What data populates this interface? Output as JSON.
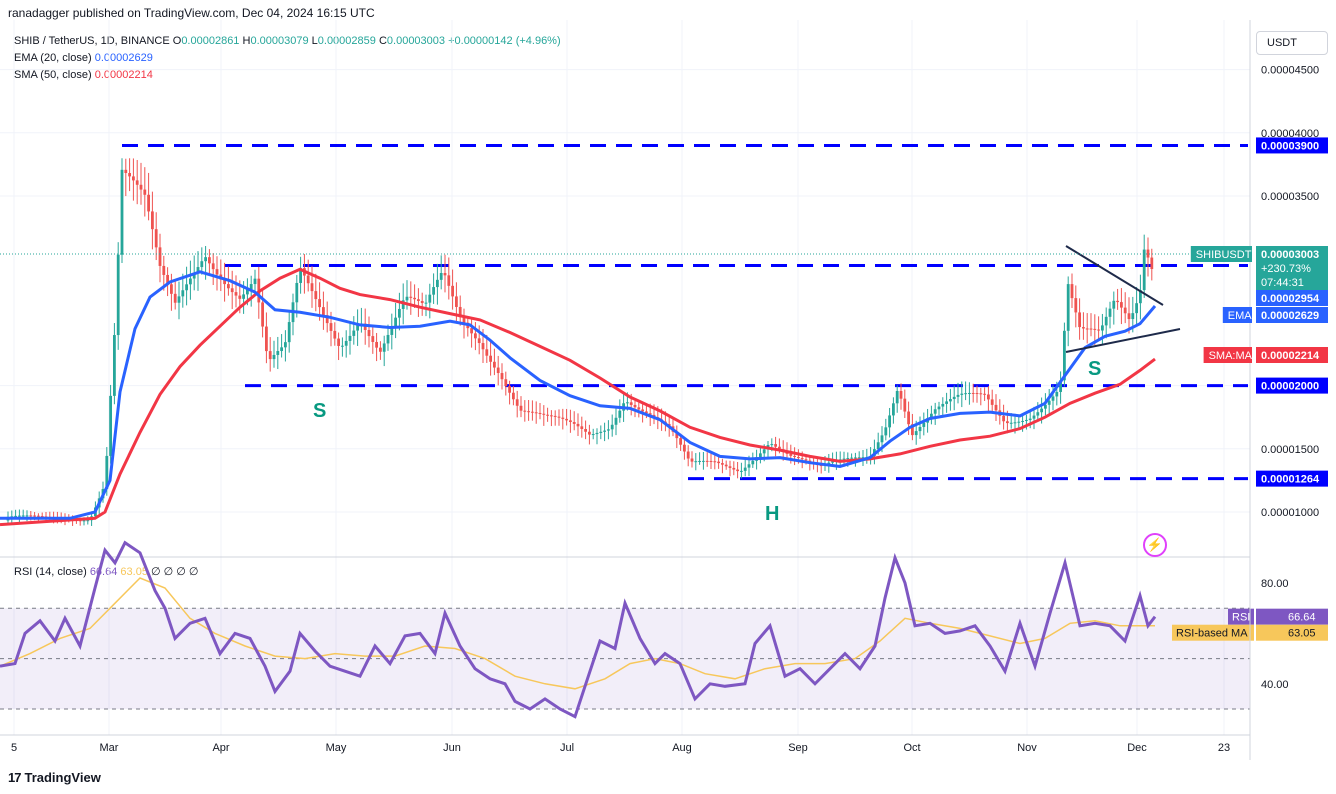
{
  "header": {
    "text": "ranadagger published on TradingView.com, Dec 04, 2024 16:15 UTC"
  },
  "legend": {
    "symbol": "SHIB / TetherUS, 1D, BINANCE",
    "o_label": "O",
    "o": "0.00002861",
    "h_label": "H",
    "h": "0.00003079",
    "l_label": "L",
    "l": "0.00002859",
    "c_label": "C",
    "c": "0.00003003",
    "change": "+0.00000142 (+4.96%)",
    "ema_label": "EMA (20, close)",
    "ema_value": "0.00002629",
    "sma_label": "SMA (50, close)",
    "sma_value": "0.00002214"
  },
  "currency": "USDT",
  "rsi_legend": {
    "label": "RSI (14, close)",
    "rsi": "66.64",
    "ma": "63.05",
    "zeros": "∅ ∅ ∅ ∅"
  },
  "footer": {
    "logo": "17",
    "brand": "TradingView"
  },
  "colors": {
    "up": "#26a69a",
    "down": "#ef5350",
    "ema": "#2962ff",
    "sma": "#f23645",
    "level": "#0000ff",
    "rsi": "#7e57c2",
    "rsi_ma": "#f7c75b"
  },
  "chart_data": [
    {
      "type": "candlestick",
      "name": "price",
      "y_ticks": [
        "0.00001000",
        "0.00001500",
        "0.00002000",
        "0.00003500",
        "0.00004000",
        "0.00004500"
      ],
      "ylim": [
        8.5e-06,
        4.65e-05
      ],
      "x_ticks": [
        "5",
        "Mar",
        "Apr",
        "May",
        "Jun",
        "Jul",
        "Aug",
        "Sep",
        "Oct",
        "Nov",
        "Dec",
        "23"
      ],
      "levels": [
        {
          "value": 3.9e-05,
          "label": "0.00003900"
        },
        {
          "value": 2.95e-05,
          "label": ""
        },
        {
          "value": 2e-05,
          "label": "0.00002000"
        },
        {
          "value": 1.264e-05,
          "label": "0.00001264"
        }
      ],
      "price_tags": [
        {
          "name": "SHIBUSDT",
          "value": "0.00003003",
          "extra1": "+230.73%",
          "extra2": "07:44:31"
        },
        {
          "name": "",
          "value": "0.00002954"
        },
        {
          "name": "EMA",
          "value": "0.00002629"
        },
        {
          "name": "SMA:MA",
          "value": "0.00002214"
        }
      ],
      "annotations": [
        "S",
        "H",
        "S"
      ],
      "series": [
        {
          "name": "EMA",
          "points": [
            [
              0,
              9.5e-06
            ],
            [
              70,
              9.5e-06
            ],
            [
              95,
              1e-05
            ],
            [
              110,
              1.25e-05
            ],
            [
              120,
              1.95e-05
            ],
            [
              135,
              2.45e-05
            ],
            [
              150,
              2.7e-05
            ],
            [
              170,
              2.82e-05
            ],
            [
              200,
              2.9e-05
            ],
            [
              230,
              2.83e-05
            ],
            [
              255,
              2.74e-05
            ],
            [
              275,
              2.6e-05
            ],
            [
              300,
              2.58e-05
            ],
            [
              330,
              2.54e-05
            ],
            [
              360,
              2.48e-05
            ],
            [
              390,
              2.46e-05
            ],
            [
              420,
              2.47e-05
            ],
            [
              450,
              2.51e-05
            ],
            [
              470,
              2.48e-05
            ],
            [
              490,
              2.36e-05
            ],
            [
              510,
              2.22e-05
            ],
            [
              540,
              2.04e-05
            ],
            [
              570,
              1.92e-05
            ],
            [
              600,
              1.84e-05
            ],
            [
              630,
              1.82e-05
            ],
            [
              660,
              1.73e-05
            ],
            [
              690,
              1.55e-05
            ],
            [
              720,
              1.44e-05
            ],
            [
              750,
              1.42e-05
            ],
            [
              780,
              1.43e-05
            ],
            [
              810,
              1.39e-05
            ],
            [
              840,
              1.36e-05
            ],
            [
              870,
              1.43e-05
            ],
            [
              890,
              1.56e-05
            ],
            [
              910,
              1.67e-05
            ],
            [
              930,
              1.74e-05
            ],
            [
              960,
              1.78e-05
            ],
            [
              990,
              1.79e-05
            ],
            [
              1020,
              1.76e-05
            ],
            [
              1045,
              1.86e-05
            ],
            [
              1065,
              2.08e-05
            ],
            [
              1085,
              2.3e-05
            ],
            [
              1105,
              2.39e-05
            ],
            [
              1125,
              2.43e-05
            ],
            [
              1140,
              2.49e-05
            ],
            [
              1155,
              2.63e-05
            ]
          ]
        },
        {
          "name": "SMA",
          "points": [
            [
              0,
              9e-06
            ],
            [
              95,
              9.5e-06
            ],
            [
              105,
              1e-05
            ],
            [
              120,
              1.3e-05
            ],
            [
              140,
              1.63e-05
            ],
            [
              160,
              1.93e-05
            ],
            [
              180,
              2.15e-05
            ],
            [
              200,
              2.32e-05
            ],
            [
              220,
              2.47e-05
            ],
            [
              240,
              2.62e-05
            ],
            [
              260,
              2.75e-05
            ],
            [
              280,
              2.85e-05
            ],
            [
              300,
              2.92e-05
            ],
            [
              320,
              2.85e-05
            ],
            [
              340,
              2.77e-05
            ],
            [
              360,
              2.72e-05
            ],
            [
              390,
              2.68e-05
            ],
            [
              420,
              2.62e-05
            ],
            [
              450,
              2.57e-05
            ],
            [
              480,
              2.52e-05
            ],
            [
              510,
              2.42e-05
            ],
            [
              540,
              2.31e-05
            ],
            [
              570,
              2.2e-05
            ],
            [
              600,
              2.06e-05
            ],
            [
              630,
              1.91e-05
            ],
            [
              660,
              1.8e-05
            ],
            [
              690,
              1.67e-05
            ],
            [
              720,
              1.59e-05
            ],
            [
              750,
              1.53e-05
            ],
            [
              780,
              1.49e-05
            ],
            [
              810,
              1.44e-05
            ],
            [
              840,
              1.4e-05
            ],
            [
              870,
              1.42e-05
            ],
            [
              900,
              1.46e-05
            ],
            [
              930,
              1.52e-05
            ],
            [
              960,
              1.57e-05
            ],
            [
              990,
              1.6e-05
            ],
            [
              1020,
              1.66e-05
            ],
            [
              1045,
              1.75e-05
            ],
            [
              1070,
              1.86e-05
            ],
            [
              1095,
              1.94e-05
            ],
            [
              1120,
              2.01e-05
            ],
            [
              1140,
              2.12e-05
            ],
            [
              1155,
              2.21e-05
            ]
          ]
        }
      ]
    },
    {
      "type": "line",
      "name": "RSI",
      "y_ticks": [
        "80.00",
        "40.00"
      ],
      "ylim": [
        27,
        97
      ],
      "bands": [
        70,
        50,
        30
      ],
      "rsi_tag": {
        "label": "RSI",
        "value": "66.64"
      },
      "ma_tag": {
        "label": "RSI-based MA",
        "value": "63.05"
      },
      "series": [
        {
          "name": "RSI",
          "points": [
            [
              0,
              47
            ],
            [
              15,
              48
            ],
            [
              25,
              60
            ],
            [
              40,
              65
            ],
            [
              55,
              57
            ],
            [
              65,
              66
            ],
            [
              80,
              55
            ],
            [
              95,
              78
            ],
            [
              105,
              93
            ],
            [
              115,
              88
            ],
            [
              125,
              96
            ],
            [
              140,
              92
            ],
            [
              155,
              77
            ],
            [
              165,
              70
            ],
            [
              175,
              58
            ],
            [
              190,
              64
            ],
            [
              205,
              66
            ],
            [
              220,
              52
            ],
            [
              235,
              60
            ],
            [
              250,
              58
            ],
            [
              265,
              47
            ],
            [
              275,
              37
            ],
            [
              290,
              45
            ],
            [
              300,
              60
            ],
            [
              315,
              53
            ],
            [
              330,
              47
            ],
            [
              345,
              45
            ],
            [
              360,
              43
            ],
            [
              375,
              55
            ],
            [
              390,
              48
            ],
            [
              405,
              59
            ],
            [
              420,
              60
            ],
            [
              435,
              52
            ],
            [
              445,
              68
            ],
            [
              460,
              55
            ],
            [
              475,
              46
            ],
            [
              490,
              42
            ],
            [
              505,
              40
            ],
            [
              515,
              33
            ],
            [
              530,
              30
            ],
            [
              545,
              34
            ],
            [
              560,
              30
            ],
            [
              575,
              27
            ],
            [
              590,
              45
            ],
            [
              600,
              57
            ],
            [
              615,
              54
            ],
            [
              625,
              72
            ],
            [
              640,
              58
            ],
            [
              655,
              48
            ],
            [
              665,
              52
            ],
            [
              680,
              48
            ],
            [
              695,
              34
            ],
            [
              710,
              40
            ],
            [
              725,
              39
            ],
            [
              745,
              40
            ],
            [
              755,
              56
            ],
            [
              770,
              63
            ],
            [
              785,
              43
            ],
            [
              800,
              46
            ],
            [
              815,
              40
            ],
            [
              830,
              46
            ],
            [
              845,
              52
            ],
            [
              860,
              46
            ],
            [
              875,
              55
            ],
            [
              885,
              74
            ],
            [
              895,
              90
            ],
            [
              905,
              80
            ],
            [
              915,
              63
            ],
            [
              930,
              64
            ],
            [
              945,
              60
            ],
            [
              960,
              61
            ],
            [
              975,
              63
            ],
            [
              990,
              55
            ],
            [
              1005,
              45
            ],
            [
              1020,
              64
            ],
            [
              1035,
              47
            ],
            [
              1050,
              68
            ],
            [
              1065,
              88
            ],
            [
              1080,
              63
            ],
            [
              1095,
              64
            ],
            [
              1110,
              63
            ],
            [
              1125,
              57
            ],
            [
              1140,
              75
            ],
            [
              1148,
              63
            ],
            [
              1155,
              66.64
            ]
          ]
        },
        {
          "name": "RSI-based MA",
          "points": [
            [
              0,
              47
            ],
            [
              30,
              52
            ],
            [
              60,
              58
            ],
            [
              90,
              62
            ],
            [
              115,
              72
            ],
            [
              140,
              82
            ],
            [
              165,
              78
            ],
            [
              190,
              66
            ],
            [
              215,
              60
            ],
            [
              245,
              55
            ],
            [
              275,
              51
            ],
            [
              305,
              50
            ],
            [
              335,
              52
            ],
            [
              365,
              51
            ],
            [
              395,
              51
            ],
            [
              425,
              55
            ],
            [
              455,
              54
            ],
            [
              485,
              50
            ],
            [
              515,
              43
            ],
            [
              545,
              40
            ],
            [
              575,
              38
            ],
            [
              605,
              42
            ],
            [
              630,
              48
            ],
            [
              655,
              50
            ],
            [
              680,
              48
            ],
            [
              705,
              44
            ],
            [
              735,
              42
            ],
            [
              765,
              46
            ],
            [
              795,
              48
            ],
            [
              825,
              48
            ],
            [
              855,
              50
            ],
            [
              880,
              57
            ],
            [
              905,
              66
            ],
            [
              930,
              64
            ],
            [
              960,
              62
            ],
            [
              990,
              59
            ],
            [
              1020,
              56
            ],
            [
              1045,
              58
            ],
            [
              1070,
              64
            ],
            [
              1095,
              65
            ],
            [
              1120,
              63
            ],
            [
              1145,
              63
            ],
            [
              1155,
              63.05
            ]
          ]
        }
      ]
    }
  ]
}
